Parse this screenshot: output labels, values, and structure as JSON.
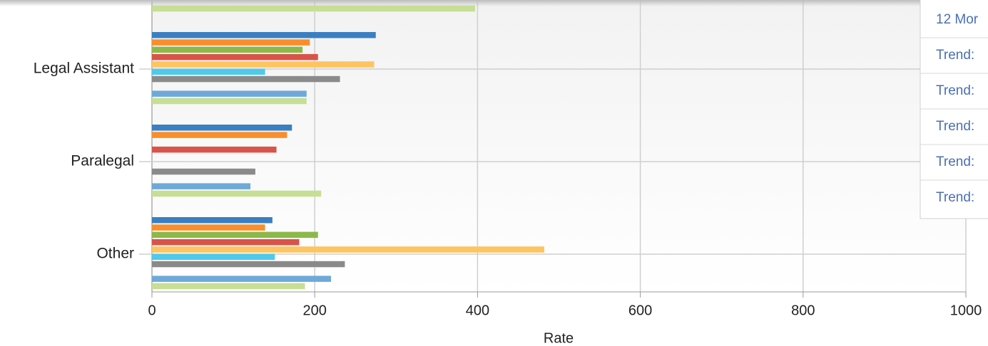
{
  "chart_data": {
    "type": "bar",
    "orientation": "horizontal",
    "x_label": "Rate",
    "categories": [
      null,
      "Legal Assistant",
      "Paralegal",
      "Other"
    ],
    "series": [
      {
        "color": "#3a7fc1",
        "values": [
          null,
          275,
          172,
          148
        ]
      },
      {
        "color": "#f98e2a",
        "values": [
          null,
          194,
          166,
          139
        ]
      },
      {
        "color": "#8db84a",
        "values": [
          null,
          185,
          null,
          204
        ]
      },
      {
        "color": "#d9534a",
        "values": [
          null,
          204,
          153,
          181
        ]
      },
      {
        "color": "#fdc460",
        "values": [
          null,
          273,
          null,
          482
        ]
      },
      {
        "color": "#4fc9ec",
        "values": [
          null,
          139,
          null,
          151
        ]
      },
      {
        "color": "#8a8a8a",
        "values": [
          null,
          231,
          127,
          237
        ]
      },
      {
        "color": "#6ea9d8",
        "values": [
          null,
          190,
          121,
          220
        ]
      },
      {
        "color": "#c7de95",
        "values": [
          397,
          190,
          208,
          188
        ]
      }
    ],
    "xlim": [
      0,
      1000
    ],
    "xticks": [
      0,
      200,
      400,
      600,
      800,
      1000
    ],
    "grid": true
  },
  "panel": {
    "items": [
      "12 Mor",
      "Trend:",
      "Trend:",
      "Trend:",
      "Trend:",
      "Trend:"
    ]
  }
}
